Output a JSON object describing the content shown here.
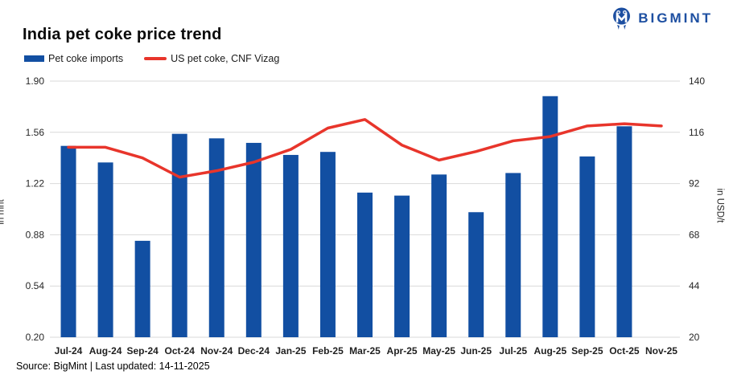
{
  "logo": {
    "text": "BIGMINT",
    "color": "#1d4fa1"
  },
  "header": {
    "title": "India pet coke price trend"
  },
  "footer": {
    "source": "Source: BigMint | Last updated: 14-11-2025"
  },
  "chart_data": {
    "type": "bar+line combo",
    "title": "India pet coke price trend",
    "categories": [
      "Jul-24",
      "Aug-24",
      "Sep-24",
      "Oct-24",
      "Nov-24",
      "Dec-24",
      "Jan-25",
      "Feb-25",
      "Mar-25",
      "Apr-25",
      "May-25",
      "Jun-25",
      "Jul-25",
      "Aug-25",
      "Sep-25",
      "Oct-25",
      "Nov-25"
    ],
    "series": [
      {
        "name": "Pet coke imports",
        "type": "bar",
        "axis": "left",
        "unit": "mnt",
        "color": "#124fa2",
        "values": [
          1.47,
          1.36,
          0.84,
          1.55,
          1.52,
          1.49,
          1.41,
          1.43,
          1.16,
          1.14,
          1.28,
          1.03,
          1.29,
          1.8,
          1.4,
          1.6,
          null
        ]
      },
      {
        "name": "US pet coke, CNF Vizag",
        "type": "line",
        "axis": "right",
        "unit": "USD/t",
        "color": "#e8352b",
        "values": [
          109,
          109,
          104,
          95,
          98,
          102,
          108,
          118,
          122,
          110,
          103,
          107,
          112,
          114,
          119,
          120,
          119
        ]
      }
    ],
    "left_axis": {
      "label": "in mnt",
      "min": 0.2,
      "max": 1.9,
      "ticks": [
        "1.90",
        "1.56",
        "1.22",
        "0.88",
        "0.54",
        "0.20"
      ]
    },
    "right_axis": {
      "label": "in USD/t",
      "min": 20,
      "max": 140,
      "ticks": [
        "140",
        "116",
        "92",
        "68",
        "44",
        "20"
      ]
    },
    "grid": true,
    "legend_position": "top-left",
    "grid_color": "#d9d9d9"
  }
}
